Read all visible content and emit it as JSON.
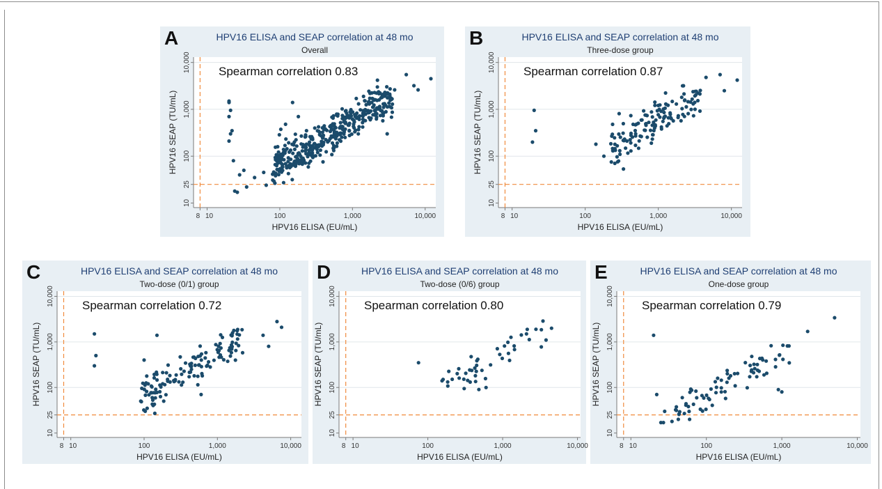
{
  "figure": {
    "panels": [
      {
        "letter": "A",
        "title": "HPV16 ELISA and SEAP correlation at 48 mo",
        "subtitle": "Overall",
        "annotation": "Spearman correlation 0.83"
      },
      {
        "letter": "B",
        "title": "HPV16 ELISA and SEAP correlation at 48 mo",
        "subtitle": "Three-dose group",
        "annotation": "Spearman correlation 0.87"
      },
      {
        "letter": "C",
        "title": "HPV16 ELISA and SEAP correlation at 48 mo",
        "subtitle": "Two-dose (0/1) group",
        "annotation": "Spearman correlation 0.72"
      },
      {
        "letter": "D",
        "title": "HPV16 ELISA and SEAP correlation at 48 mo",
        "subtitle": "Two-dose (0/6) group",
        "annotation": "Spearman correlation 0.80"
      },
      {
        "letter": "E",
        "title": "HPV16 ELISA and SEAP correlation at 48 mo",
        "subtitle": "One-dose group",
        "annotation": "Spearman correlation 0.79"
      }
    ]
  },
  "chart_data": [
    {
      "type": "scatter",
      "title": "HPV16 ELISA and SEAP correlation at 48 mo",
      "subtitle": "Overall",
      "annotation": "Spearman correlation 0.83",
      "xlabel": "HPV16 ELISA (EU/mL)",
      "ylabel": "HPV16 SEAP (TU/mL)",
      "x_scale": "log",
      "y_scale": "log",
      "xlim": [
        6.5,
        14000
      ],
      "ylim": [
        8,
        13000
      ],
      "x_ticks": [
        8,
        10,
        100,
        1000,
        10000
      ],
      "x_tick_labels": [
        "8",
        "10",
        "100",
        "1,000",
        "10,000"
      ],
      "y_ticks": [
        10,
        25,
        100,
        1000,
        10000
      ],
      "y_tick_labels": [
        "10",
        "25",
        "100",
        "1,000",
        "10,000"
      ],
      "reference_lines": {
        "x": 8,
        "y": 25,
        "color": "#f08a3c",
        "style": "dashed"
      },
      "point_color": "#1b4b6b",
      "grid": true,
      "seed": 11,
      "n_cloud": 420,
      "points": [
        [
          20,
          1500
        ],
        [
          20,
          1400
        ],
        [
          21,
          950
        ],
        [
          20,
          700
        ],
        [
          22,
          350
        ],
        [
          21,
          300
        ],
        [
          20,
          210
        ],
        [
          23,
          80
        ],
        [
          24,
          18
        ],
        [
          26,
          17
        ],
        [
          28,
          40
        ],
        [
          32,
          50
        ],
        [
          35,
          22
        ],
        [
          45,
          35
        ],
        [
          60,
          45
        ],
        [
          65,
          24
        ],
        [
          150,
          1400
        ],
        [
          120,
          480
        ],
        [
          180,
          700
        ],
        [
          5500,
          5500
        ],
        [
          7000,
          3200
        ],
        [
          8000,
          2600
        ],
        [
          12000,
          4500
        ],
        [
          2200,
          3000
        ],
        [
          3800,
          2600
        ],
        [
          3000,
          300
        ]
      ]
    },
    {
      "type": "scatter",
      "title": "HPV16 ELISA and SEAP correlation at 48 mo",
      "subtitle": "Three-dose group",
      "annotation": "Spearman correlation 0.87",
      "xlabel": "HPV16 ELISA (EU/mL)",
      "ylabel": "HPV16 SEAP (TU/mL)",
      "x_scale": "log",
      "y_scale": "log",
      "xlim": [
        6.5,
        14000
      ],
      "ylim": [
        8,
        13000
      ],
      "x_ticks": [
        8,
        10,
        100,
        1000,
        10000
      ],
      "x_tick_labels": [
        "8",
        "10",
        "100",
        "1,000",
        "10,000"
      ],
      "y_ticks": [
        10,
        25,
        100,
        1000,
        10000
      ],
      "y_tick_labels": [
        "10",
        "25",
        "100",
        "1,000",
        "10,000"
      ],
      "reference_lines": {
        "x": 8,
        "y": 25,
        "color": "#f08a3c",
        "style": "dashed"
      },
      "point_color": "#1b4b6b",
      "grid": true,
      "seed": 22,
      "n_cloud": 140,
      "points": [
        [
          20,
          950
        ],
        [
          21,
          350
        ],
        [
          19,
          200
        ],
        [
          140,
          180
        ],
        [
          180,
          100
        ],
        [
          240,
          130
        ],
        [
          7000,
          5500
        ],
        [
          12000,
          4200
        ],
        [
          4500,
          4800
        ],
        [
          8000,
          2500
        ]
      ]
    },
    {
      "type": "scatter",
      "title": "HPV16 ELISA and SEAP correlation at 48 mo",
      "subtitle": "Two-dose (0/1) group",
      "annotation": "Spearman correlation 0.72",
      "xlabel": "HPV16 ELISA (EU/mL)",
      "ylabel": "HPV16 SEAP (TU/mL)",
      "x_scale": "log",
      "y_scale": "log",
      "xlim": [
        6.5,
        14000
      ],
      "ylim": [
        8,
        13000
      ],
      "x_ticks": [
        8,
        10,
        100,
        1000,
        10000
      ],
      "x_tick_labels": [
        "8",
        "10",
        "100",
        "1,000",
        "10,000"
      ],
      "y_ticks": [
        10,
        25,
        100,
        1000,
        10000
      ],
      "y_tick_labels": [
        "10",
        "25",
        "100",
        "1,000",
        "10,000"
      ],
      "reference_lines": {
        "x": 8,
        "y": 25,
        "color": "#f08a3c",
        "style": "dashed"
      },
      "point_color": "#1b4b6b",
      "grid": true,
      "seed": 33,
      "n_cloud": 130,
      "points": [
        [
          21,
          1500
        ],
        [
          22,
          500
        ],
        [
          21,
          300
        ],
        [
          100,
          400
        ],
        [
          150,
          1400
        ],
        [
          140,
          27
        ],
        [
          90,
          50
        ],
        [
          110,
          35
        ],
        [
          600,
          70
        ],
        [
          6500,
          2800
        ],
        [
          7500,
          2100
        ],
        [
          4200,
          1400
        ],
        [
          5000,
          800
        ]
      ]
    },
    {
      "type": "scatter",
      "title": "HPV16 ELISA and SEAP correlation at 48 mo",
      "subtitle": "Two-dose (0/6) group",
      "annotation": "Spearman correlation 0.80",
      "xlabel": "HPV16 ELISA (EU/mL)",
      "ylabel": "HPV16 SEAP (TU/mL)",
      "x_scale": "log",
      "y_scale": "log",
      "xlim": [
        6.5,
        11000
      ],
      "ylim": [
        8,
        13000
      ],
      "x_ticks": [
        8,
        10,
        100,
        1000,
        10000
      ],
      "x_tick_labels": [
        "8",
        "10",
        "100",
        "1,000",
        "10,000"
      ],
      "y_ticks": [
        10,
        25,
        100,
        1000,
        10000
      ],
      "y_tick_labels": [
        "10",
        "25",
        "100",
        "1,000",
        "10,000"
      ],
      "reference_lines": {
        "x": 8,
        "y": 25,
        "color": "#f08a3c",
        "style": "dashed"
      },
      "point_color": "#1b4b6b",
      "grid": true,
      "seed": 44,
      "n_cloud": 44,
      "points": [
        [
          75,
          350
        ],
        [
          155,
          140
        ],
        [
          160,
          150
        ],
        [
          4500,
          2000
        ],
        [
          3800,
          1100
        ],
        [
          600,
          100
        ]
      ]
    },
    {
      "type": "scatter",
      "title": "HPV16 ELISA and SEAP correlation at 48 mo",
      "subtitle": "One-dose group",
      "annotation": "Spearman correlation 0.79",
      "xlabel": "HPV16 ELISA (EU/mL)",
      "ylabel": "HPV16 SEAP (TU/mL)",
      "x_scale": "log",
      "y_scale": "log",
      "xlim": [
        6.5,
        11000
      ],
      "ylim": [
        8,
        13000
      ],
      "x_ticks": [
        8,
        10,
        100,
        1000,
        10000
      ],
      "x_tick_labels": [
        "8",
        "10",
        "100",
        "1,000",
        "10,000"
      ],
      "y_ticks": [
        10,
        25,
        100,
        1000,
        10000
      ],
      "y_tick_labels": [
        "10",
        "25",
        "100",
        "1,000",
        "10,000"
      ],
      "reference_lines": {
        "x": 8,
        "y": 25,
        "color": "#f08a3c",
        "style": "dashed"
      },
      "point_color": "#1b4b6b",
      "grid": true,
      "seed": 55,
      "n_cloud": 75,
      "points": [
        [
          20,
          1400
        ],
        [
          22,
          70
        ],
        [
          25,
          17
        ],
        [
          27,
          17
        ],
        [
          28,
          30
        ],
        [
          35,
          18
        ],
        [
          48,
          60
        ],
        [
          60,
          20
        ],
        [
          5000,
          3400
        ],
        [
          2200,
          1700
        ],
        [
          1000,
          80
        ],
        [
          900,
          90
        ]
      ]
    }
  ]
}
